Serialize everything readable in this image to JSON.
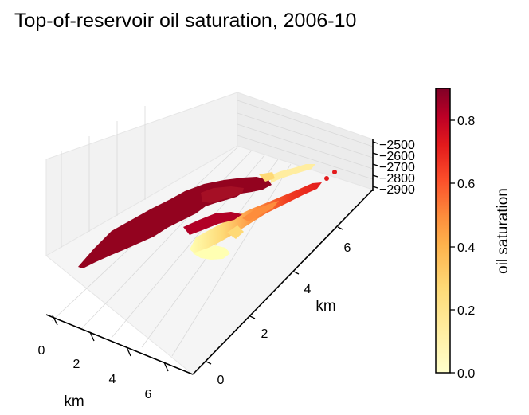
{
  "chart_data": {
    "type": "scatter",
    "title": "Top-of-reservoir oil saturation, 2006-10",
    "xlabel": "km",
    "ylabel": "km",
    "zlabel": "",
    "x_ticks": [
      "0",
      "2",
      "4",
      "6"
    ],
    "y_ticks": [
      "0",
      "2",
      "4",
      "6"
    ],
    "z_ticks": [
      "−2500",
      "−2600",
      "−2700",
      "−2800",
      "−2900"
    ],
    "xlim": [
      0,
      7.5
    ],
    "ylim": [
      0,
      7.5
    ],
    "zlim": [
      -2900,
      -2500
    ],
    "colorbar": {
      "label": "oil saturation",
      "ticks": [
        "0.0",
        "0.2",
        "0.4",
        "0.6",
        "0.8"
      ],
      "range": [
        0,
        0.9
      ],
      "colormap": "YlOrRd"
    },
    "grid": true,
    "regions": [
      {
        "name": "main body",
        "saturation": 0.85
      },
      {
        "name": "upper finger",
        "saturation": 0.84
      },
      {
        "name": "upper finger tip",
        "saturation": 0.12
      },
      {
        "name": "lower lobe",
        "saturation": 0.35
      },
      {
        "name": "lower lobe edge",
        "saturation": 0.05
      },
      {
        "name": "isolated cells",
        "saturation": 0.7
      }
    ]
  }
}
